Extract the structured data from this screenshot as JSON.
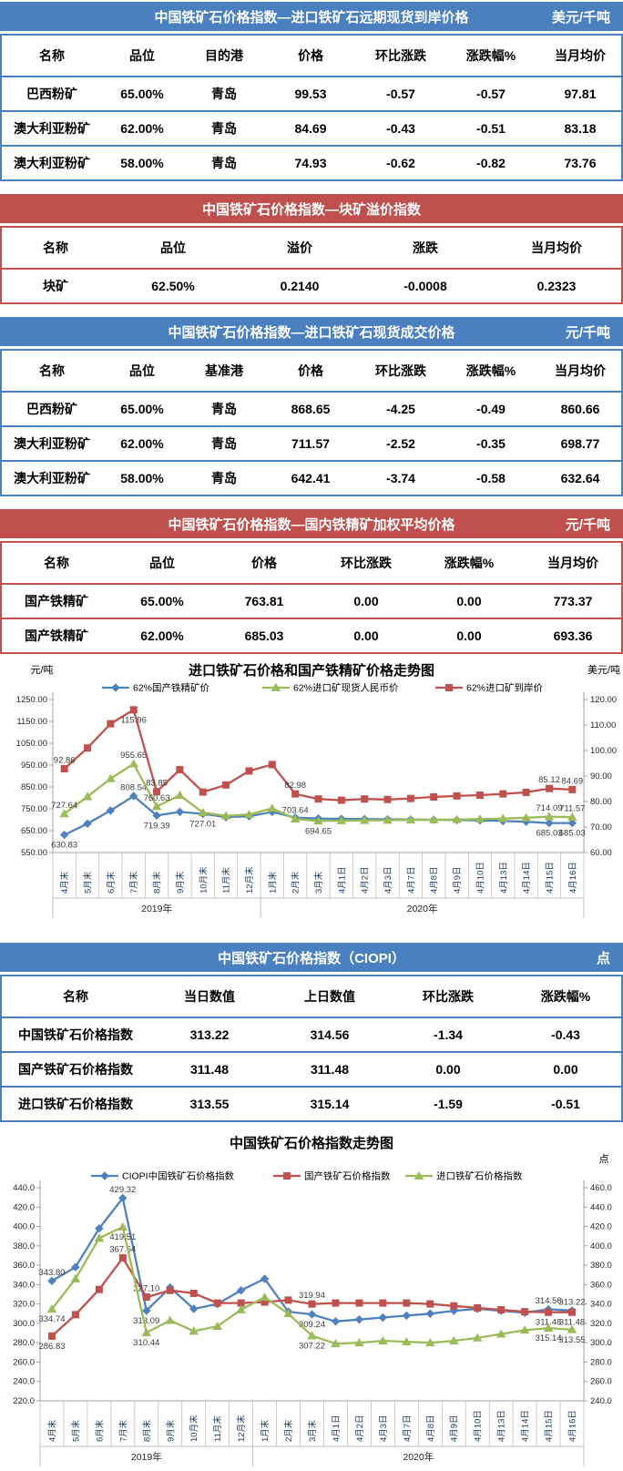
{
  "theme": {
    "blue": "#4a80c0",
    "red": "#c0504d",
    "axis_gray": "#9aa0a6",
    "grid_gray": "#bfbfbf"
  },
  "tables": [
    {
      "theme": "blue",
      "title": "中国铁矿石价格指数—进口铁矿石远期现货到岸价格",
      "unit": "美元/千吨",
      "columns": [
        "名称",
        "品位",
        "目的港",
        "价格",
        "环比涨跌",
        "涨跌幅%",
        "当月均价"
      ],
      "rows": [
        [
          "巴西粉矿",
          "65.00%",
          "青岛",
          "99.53",
          "-0.57",
          "-0.57",
          "97.81"
        ],
        [
          "澳大利亚粉矿",
          "62.00%",
          "青岛",
          "84.69",
          "-0.43",
          "-0.51",
          "83.18"
        ],
        [
          "澳大利亚粉矿",
          "58.00%",
          "青岛",
          "74.93",
          "-0.62",
          "-0.82",
          "73.76"
        ]
      ]
    },
    {
      "theme": "red",
      "title": "中国铁矿石价格指数—块矿溢价指数",
      "unit": "",
      "columns": [
        "名称",
        "品位",
        "溢价",
        "涨跌",
        "当月均价"
      ],
      "rows": [
        [
          "块矿",
          "62.50%",
          "0.2140",
          "-0.0008",
          "0.2323"
        ]
      ]
    },
    {
      "theme": "blue",
      "title": "中国铁矿石价格指数—进口铁矿石现货成交价格",
      "unit": "元/千吨",
      "columns": [
        "名称",
        "品位",
        "基准港",
        "价格",
        "环比涨跌",
        "涨跌幅%",
        "当月均价"
      ],
      "rows": [
        [
          "巴西粉矿",
          "65.00%",
          "青岛",
          "868.65",
          "-4.25",
          "-0.49",
          "860.66"
        ],
        [
          "澳大利亚粉矿",
          "62.00%",
          "青岛",
          "711.57",
          "-2.52",
          "-0.35",
          "698.77"
        ],
        [
          "澳大利亚粉矿",
          "58.00%",
          "青岛",
          "642.41",
          "-3.74",
          "-0.58",
          "632.64"
        ]
      ]
    },
    {
      "theme": "red",
      "title": "中国铁矿石价格指数—国内铁精矿加权平均价格",
      "unit": "元/千吨",
      "columns": [
        "名称",
        "品位",
        "价格",
        "环比涨跌",
        "涨跌幅%",
        "当月均价"
      ],
      "rows": [
        [
          "国产铁精矿",
          "65.00%",
          "763.81",
          "0.00",
          "0.00",
          "773.37"
        ],
        [
          "国产铁精矿",
          "62.00%",
          "685.03",
          "0.00",
          "0.00",
          "693.36"
        ]
      ]
    },
    {
      "theme": "blue",
      "title": "中国铁矿石价格指数（CIOPI）",
      "unit": "点",
      "columns": [
        "名称",
        "当日数值",
        "上日数值",
        "环比涨跌",
        "涨跌幅%"
      ],
      "rows": [
        [
          "中国铁矿石价格指数",
          "313.22",
          "314.56",
          "-1.34",
          "-0.43"
        ],
        [
          "国产铁矿石价格指数",
          "311.48",
          "311.48",
          "0.00",
          "0.00"
        ],
        [
          "进口铁矿石价格指数",
          "313.55",
          "315.14",
          "-1.59",
          "-0.51"
        ]
      ]
    }
  ],
  "chart_data": [
    {
      "type": "line",
      "title": "进口铁矿石价格和国产铁精矿价格走势图",
      "left_axis": {
        "label": "元/吨",
        "min": 550,
        "max": 1250,
        "step": 100,
        "decimals": 2
      },
      "right_axis": {
        "label": "美元/吨",
        "min": 60,
        "max": 120,
        "step": 10,
        "decimals": 2
      },
      "categories": [
        "4月末",
        "5月末",
        "6月末",
        "7月末",
        "8月末",
        "9月末",
        "10月末",
        "11月末",
        "12月末",
        "1月末",
        "2月末",
        "3月末",
        "4月1日",
        "4月2日",
        "4月3日",
        "4月7日",
        "4月8日",
        "4月9日",
        "4月10日",
        "4月13日",
        "4月14日",
        "4月15日",
        "4月16日"
      ],
      "year_groups": [
        {
          "label": "2019年",
          "count": 9
        },
        {
          "label": "2020年",
          "count": 14
        }
      ],
      "series": [
        {
          "name": "62%国产铁精矿价",
          "color": "#4f81bd",
          "marker": "diamond",
          "axis": "left",
          "values": [
            630.83,
            682,
            742,
            808.54,
            719.39,
            736,
            727.01,
            712,
            716,
            736,
            710,
            706,
            704,
            703,
            702,
            701,
            700,
            699,
            697,
            694,
            691,
            685.03,
            685.03
          ],
          "labels": [
            [
              0,
              "630.83",
              "b"
            ],
            [
              3,
              "808.54",
              "a"
            ],
            [
              4,
              "719.39",
              "b"
            ],
            [
              6,
              "727.01",
              "b"
            ],
            [
              21,
              "685.03",
              "b"
            ],
            [
              22,
              "685.03",
              "b"
            ]
          ]
        },
        {
          "name": "62%进口矿现货人民币价",
          "color": "#9bbb59",
          "marker": "triangle",
          "axis": "left",
          "values": [
            727.64,
            806,
            888,
            955.65,
            760.63,
            812,
            733,
            718,
            724,
            752,
            703.64,
            694.65,
            696,
            697,
            698,
            699,
            700,
            701,
            703,
            706,
            709,
            714.09,
            711.57
          ],
          "labels": [
            [
              0,
              "727.64",
              "a"
            ],
            [
              3,
              "955.65",
              "a"
            ],
            [
              4,
              "760.63",
              "a"
            ],
            [
              10,
              "703.64",
              "a"
            ],
            [
              11,
              "694.65",
              "b"
            ],
            [
              21,
              "714.09",
              "a"
            ],
            [
              22,
              "711.57",
              "a"
            ]
          ]
        },
        {
          "name": "62%进口矿到岸价",
          "color": "#c0504d",
          "marker": "square",
          "axis": "right",
          "values": [
            92.86,
            101,
            110.5,
            115.96,
            83.85,
            92.5,
            83.7,
            86.5,
            92,
            94.5,
            82.98,
            81,
            80.5,
            81,
            80.8,
            81.2,
            81.8,
            82.2,
            82.5,
            83,
            83.6,
            85.12,
            84.69
          ],
          "labels": [
            [
              0,
              "92.86",
              "a"
            ],
            [
              3,
              "115.96",
              "b"
            ],
            [
              4,
              "83.85",
              "a"
            ],
            [
              10,
              "82.98",
              "a"
            ],
            [
              21,
              "85.12",
              "a"
            ],
            [
              22,
              "84.69",
              "a"
            ]
          ]
        }
      ]
    },
    {
      "type": "line",
      "title": "中国铁矿石价格指数走势图",
      "left_axis": {
        "label": "",
        "min": 220,
        "max": 440,
        "step": 20,
        "decimals": 1
      },
      "right_axis": {
        "label": "点",
        "min": 240,
        "max": 460,
        "step": 20,
        "decimals": 1
      },
      "categories": [
        "4月末",
        "5月末",
        "6月末",
        "7月末",
        "8月末",
        "9月末",
        "10月末",
        "11月末",
        "12月末",
        "1月末",
        "2月末",
        "3月末",
        "4月1日",
        "4月2日",
        "4月3日",
        "4月7日",
        "4月8日",
        "4月9日",
        "4月10日",
        "4月13日",
        "4月14日",
        "4月15日",
        "4月16日"
      ],
      "year_groups": [
        {
          "label": "2019年",
          "count": 9
        },
        {
          "label": "2020年",
          "count": 14
        }
      ],
      "series": [
        {
          "name": "CIOPI中国铁矿石价格指数",
          "color": "#4f81bd",
          "marker": "diamond",
          "axis": "left",
          "values": [
            343.8,
            358,
            398,
            429.32,
            313.09,
            337,
            315,
            320,
            334,
            346,
            312,
            309.24,
            302,
            304,
            306,
            308,
            310,
            313,
            315,
            313,
            311,
            314.56,
            313.22
          ],
          "labels": [
            [
              0,
              "343.80",
              "a"
            ],
            [
              3,
              "429.32",
              "a"
            ],
            [
              4,
              "313.09",
              "b"
            ],
            [
              11,
              "309.24",
              "b"
            ],
            [
              21,
              "314.56",
              "a"
            ],
            [
              22,
              "313.22",
              "a"
            ]
          ]
        },
        {
          "name": "国产铁矿石价格指数",
          "color": "#c0504d",
          "marker": "square",
          "axis": "left",
          "values": [
            286.83,
            309,
            335,
            367.64,
            327.1,
            334,
            331,
            321,
            321,
            322,
            324,
            319.94,
            321,
            321,
            321,
            321,
            320,
            318,
            316,
            314,
            312,
            311.48,
            311.48
          ],
          "labels": [
            [
              0,
              "286.83",
              "b"
            ],
            [
              3,
              "367.64",
              "a"
            ],
            [
              4,
              "327.10",
              "a"
            ],
            [
              11,
              "319.94",
              "a"
            ],
            [
              21,
              "311.48",
              "b"
            ],
            [
              22,
              "311.48",
              "b"
            ]
          ]
        },
        {
          "name": "进口铁矿石价格指数",
          "color": "#9bbb59",
          "marker": "triangle",
          "axis": "right",
          "values": [
            334.74,
            366,
            408,
            419.51,
            310.44,
            323,
            312,
            317,
            334,
            347,
            330,
            307.22,
            299,
            300,
            302,
            301,
            300,
            302,
            305,
            309,
            313,
            315.14,
            313.55
          ],
          "labels": [
            [
              0,
              "334.74",
              "b"
            ],
            [
              3,
              "419.51",
              "b"
            ],
            [
              4,
              "310.44",
              "b"
            ],
            [
              11,
              "307.22",
              "b"
            ],
            [
              21,
              "315.14",
              "b"
            ],
            [
              22,
              "313.55",
              "b"
            ]
          ]
        }
      ]
    }
  ]
}
